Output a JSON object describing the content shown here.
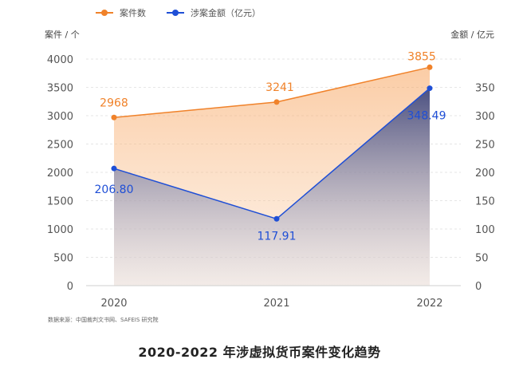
{
  "chart_data": {
    "type": "line",
    "title": "2020-2022 年涉虚拟货币案件变化趋势",
    "categories": [
      "2020",
      "2021",
      "2022"
    ],
    "y_left": {
      "label": "案件 / 个",
      "range": [
        0,
        4000
      ],
      "ticks": [
        0,
        500,
        1000,
        1500,
        2000,
        2500,
        3000,
        3500,
        4000
      ]
    },
    "y_right": {
      "label": "金额 / 亿元",
      "range": [
        0,
        400
      ],
      "ticks": [
        0,
        50,
        100,
        150,
        200,
        250,
        300,
        350
      ]
    },
    "series": [
      {
        "name": "案件数",
        "axis": "left",
        "color": "#f0822a",
        "values": [
          2968,
          3241,
          3855
        ],
        "labels": [
          "2968",
          "3241",
          "3855"
        ]
      },
      {
        "name": "涉案金额（亿元）",
        "axis": "right",
        "color": "#1f4fd6",
        "values": [
          206.8,
          117.91,
          348.49
        ],
        "labels": [
          "206.80",
          "117.91",
          "348.49"
        ]
      }
    ],
    "grid": true,
    "legend": "top-left"
  },
  "source_note": "数据来源：中国裁判文书网、SAFEIS 研究院"
}
